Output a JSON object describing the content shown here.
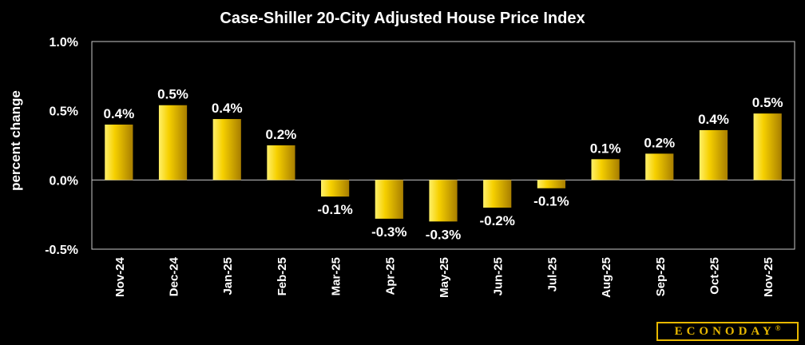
{
  "chart_data": {
    "type": "bar",
    "title": "Case-Shiller 20-City Adjusted House Price Index",
    "xlabel": "",
    "ylabel": "percent change",
    "ylim": [
      -0.5,
      1.0
    ],
    "yticks": [
      "1.0%",
      "0.5%",
      "0.0%",
      "-0.5%"
    ],
    "ytick_values": [
      1.0,
      0.5,
      0.0,
      -0.5
    ],
    "categories": [
      "Nov-24",
      "Dec-24",
      "Jan-25",
      "Feb-25",
      "Mar-25",
      "Apr-25",
      "May-25",
      "Jun-25",
      "Jul-25",
      "Aug-25",
      "Sep-25",
      "Oct-25",
      "Nov-25"
    ],
    "values": [
      0.4,
      0.54,
      0.44,
      0.25,
      -0.12,
      -0.28,
      -0.3,
      -0.2,
      -0.06,
      0.15,
      0.19,
      0.36,
      0.48
    ],
    "labels": [
      "0.4%",
      "0.5%",
      "0.4%",
      "0.2%",
      "-0.1%",
      "-0.3%",
      "-0.3%",
      "-0.2%",
      "-0.1%",
      "0.1%",
      "0.2%",
      "0.4%",
      "0.5%"
    ],
    "grid": false,
    "bar_color": "#f2c400"
  },
  "brand": {
    "name": "ECONODAY",
    "mark": "®",
    "color": "#e8b800"
  }
}
